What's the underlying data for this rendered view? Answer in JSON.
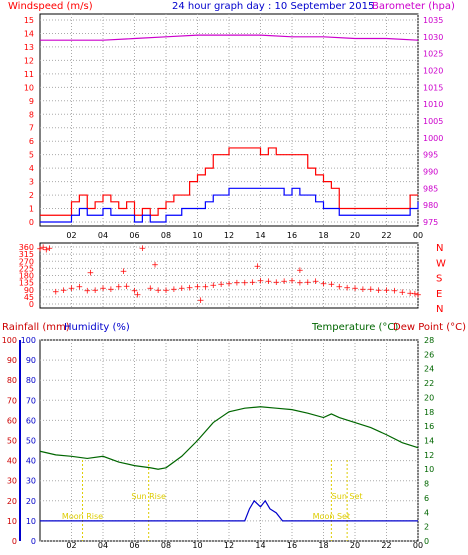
{
  "header": {
    "left": "Windspeed (m/s)",
    "center": "24 hour graph day : 10 September 2015",
    "right": "Barometer (hpa)"
  },
  "panel3": {
    "rain": "Rainfall (mm)",
    "hum": "Humidity (%)",
    "temp": "Temperature (°C)",
    "dew": "Dew Point (°C)",
    "sunrise": "Sun Rise",
    "sunset": "Sun Set",
    "moonrise": "Moon Rise",
    "moonset": "Moon Set"
  },
  "colors": {
    "wind_gust": "#ff0000",
    "wind_avg": "#0000ff",
    "barometer": "#cc00cc",
    "direction": "#ff0000",
    "temperature": "#006600",
    "humidity": "#0000cc",
    "rain": "#cc0000",
    "sun_moon": "#ddcc00",
    "grid": "#aaaaaa"
  },
  "chart_data": [
    {
      "type": "line",
      "name": "wind-barometer",
      "x_ticks": [
        "02",
        "04",
        "06",
        "08",
        "10",
        "12",
        "14",
        "16",
        "18",
        "20",
        "22",
        "00"
      ],
      "left_axis": {
        "label": "Windspeed (m/s)",
        "range": [
          0,
          15
        ],
        "ticks": [
          "0",
          "1",
          "2",
          "3",
          "4",
          "5",
          "6",
          "7",
          "8",
          "9",
          "10",
          "11",
          "12",
          "13",
          "14",
          "15"
        ]
      },
      "right_axis": {
        "label": "Barometer (hpa)",
        "range": [
          975,
          1035
        ],
        "ticks": [
          "975",
          "980",
          "985",
          "990",
          "995",
          "1000",
          "1005",
          "1010",
          "1015",
          "1020",
          "1025",
          "1030",
          "1035"
        ]
      },
      "series": [
        {
          "name": "Windspeed gust",
          "axis": "left",
          "x": [
            0,
            1,
            2,
            2.5,
            3,
            3.5,
            4,
            4.5,
            5,
            5.5,
            6,
            6.5,
            7,
            7.5,
            8,
            8.5,
            9,
            9.5,
            10,
            10.5,
            11,
            11.5,
            12,
            12.5,
            13,
            13.5,
            14,
            14.5,
            15,
            15.5,
            16,
            16.5,
            17,
            17.5,
            18,
            18.5,
            19,
            19.5,
            20,
            20.5,
            21,
            21.5,
            22,
            22.5,
            23,
            23.5,
            24
          ],
          "y": [
            0.5,
            0.5,
            1.5,
            2,
            1,
            1.5,
            2,
            1.5,
            1,
            1.5,
            0.5,
            1,
            0.5,
            1,
            1.5,
            2,
            2,
            3,
            3.5,
            4,
            5,
            5,
            5.5,
            5.5,
            5.5,
            5.5,
            5,
            5.5,
            5,
            5,
            5,
            5,
            4,
            3.5,
            3,
            2.5,
            1,
            1,
            1,
            1,
            1,
            1,
            1,
            1,
            1,
            2,
            2
          ]
        },
        {
          "name": "Windspeed",
          "axis": "left",
          "x": [
            0,
            1,
            2,
            2.5,
            3,
            3.5,
            4,
            4.5,
            5,
            5.5,
            6,
            6.5,
            7,
            7.5,
            8,
            8.5,
            9,
            9.5,
            10,
            10.5,
            11,
            11.5,
            12,
            12.5,
            13,
            13.5,
            14,
            14.5,
            15,
            15.5,
            16,
            16.5,
            17,
            17.5,
            18,
            18.5,
            19,
            19.5,
            20,
            20.5,
            21,
            21.5,
            22,
            22.5,
            23,
            23.5,
            24
          ],
          "y": [
            0,
            0,
            0.5,
            1,
            0.5,
            0.5,
            1,
            0.5,
            0.5,
            0.5,
            0,
            0.5,
            0,
            0,
            0.5,
            0.5,
            1,
            1,
            1,
            1.5,
            2,
            2,
            2.5,
            2.5,
            2.5,
            2.5,
            2.5,
            2.5,
            2.5,
            2,
            2.5,
            2,
            2,
            1.5,
            1,
            1,
            0.5,
            0.5,
            0.5,
            0.5,
            0.5,
            0.5,
            0.5,
            0.5,
            0.5,
            1,
            1.5
          ]
        },
        {
          "name": "Barometer",
          "axis": "right",
          "x": [
            0,
            2,
            4,
            6,
            8,
            10,
            12,
            14,
            16,
            18,
            20,
            22,
            24
          ],
          "y": [
            1029,
            1029,
            1029,
            1029.5,
            1030,
            1030.5,
            1030.5,
            1030.5,
            1030,
            1030,
            1029.5,
            1029.5,
            1029
          ]
        }
      ]
    },
    {
      "type": "scatter",
      "name": "wind-direction",
      "x_ticks": [
        "02",
        "04",
        "06",
        "08",
        "10",
        "12",
        "14",
        "16",
        "18",
        "20",
        "22",
        "00"
      ],
      "left_axis": {
        "ticks": [
          "0",
          "45",
          "90",
          "135",
          "180",
          "225",
          "270",
          "315",
          "360"
        ],
        "range": [
          0,
          360
        ]
      },
      "right_axis": {
        "ticks": [
          "N",
          "W",
          "S",
          "E",
          "N"
        ]
      },
      "series": [
        {
          "name": "Wind direction",
          "x": [
            0,
            0.2,
            0.4,
            0.6,
            1,
            1.5,
            2,
            2.5,
            3,
            3.5,
            4,
            4.5,
            5,
            5.5,
            6,
            6.2,
            6.5,
            7,
            7.5,
            8,
            8.5,
            9,
            9.5,
            10,
            10.5,
            11,
            11.5,
            12,
            12.5,
            13,
            13.5,
            14,
            14.5,
            15,
            15.5,
            16,
            16.5,
            17,
            17.5,
            18,
            18.5,
            19,
            19.5,
            20,
            20.5,
            21,
            21.5,
            22,
            22.5,
            23,
            23.5,
            23.8,
            24,
            3.2,
            5.3,
            7.3,
            10.2,
            13.8,
            16.5
          ],
          "y": [
            350,
            360,
            345,
            355,
            80,
            90,
            100,
            110,
            85,
            90,
            100,
            95,
            110,
            115,
            85,
            60,
            355,
            100,
            90,
            90,
            95,
            100,
            105,
            110,
            110,
            120,
            125,
            130,
            135,
            135,
            140,
            150,
            145,
            140,
            145,
            150,
            135,
            140,
            145,
            130,
            125,
            110,
            105,
            100,
            95,
            95,
            90,
            90,
            85,
            75,
            70,
            65,
            60,
            200,
            210,
            250,
            25,
            240,
            215
          ]
        }
      ]
    },
    {
      "type": "line",
      "name": "rain-humidity-temperature",
      "x_ticks": [
        "02",
        "04",
        "06",
        "08",
        "10",
        "12",
        "14",
        "16",
        "18",
        "20",
        "22",
        "00"
      ],
      "left_axes": [
        {
          "label": "Rainfall (mm)",
          "ticks": [
            "0",
            "10",
            "20",
            "30",
            "40",
            "50",
            "60",
            "70",
            "80",
            "90",
            "100"
          ],
          "range": [
            0,
            100
          ]
        },
        {
          "label": "Humidity (%)",
          "ticks": [
            "0",
            "10",
            "20",
            "30",
            "40",
            "50",
            "60",
            "70",
            "80",
            "90",
            "100"
          ],
          "range": [
            0,
            100
          ]
        }
      ],
      "right_axis": {
        "label": "Temperature (°C)",
        "range": [
          0,
          28
        ],
        "ticks": [
          "0",
          "2",
          "4",
          "6",
          "8",
          "10",
          "12",
          "14",
          "16",
          "18",
          "20",
          "22",
          "24",
          "26",
          "28"
        ]
      },
      "series": [
        {
          "name": "Temperature",
          "axis": "right",
          "x": [
            0,
            1,
            2,
            3,
            4,
            5,
            6,
            7,
            7.5,
            8,
            9,
            10,
            11,
            12,
            13,
            14,
            15,
            16,
            17,
            18,
            18.5,
            19,
            20,
            21,
            22,
            23,
            24
          ],
          "y": [
            12.5,
            12,
            11.8,
            11.5,
            11.8,
            11,
            10.5,
            10.2,
            10,
            10.2,
            11.8,
            14,
            16.5,
            18,
            18.5,
            18.7,
            18.5,
            18.3,
            17.8,
            17.2,
            17.7,
            17.2,
            16.5,
            15.8,
            14.8,
            13.7,
            13
          ]
        },
        {
          "name": "Rainfall",
          "axis": "left",
          "x": [
            0,
            12,
            13,
            13.3,
            13.6,
            14,
            14.3,
            14.6,
            15,
            15.4,
            16,
            24
          ],
          "y": [
            10,
            10,
            10,
            16,
            20,
            17,
            20,
            16,
            14,
            10,
            10,
            10
          ]
        }
      ],
      "events": [
        {
          "label": "Sun Rise",
          "x": 6.9
        },
        {
          "label": "Sun Set",
          "x": 19.5
        },
        {
          "label": "Moon Rise",
          "x": 2.7
        },
        {
          "label": "Moon Set",
          "x": 18.5
        }
      ]
    }
  ]
}
